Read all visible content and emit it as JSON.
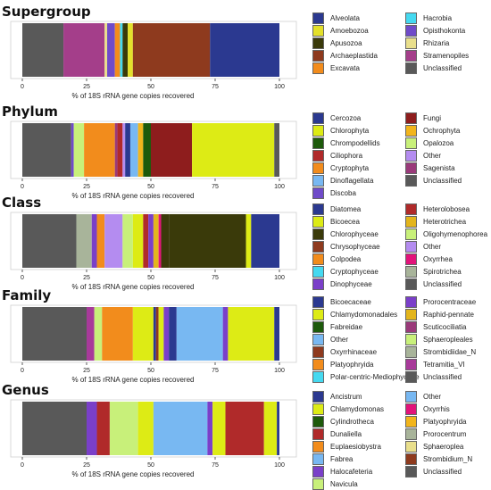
{
  "chart_data": [
    {
      "type": "bar",
      "title": "Supergroup",
      "xlabel": "% of 18S rRNA gene copies recovered",
      "xlim": [
        0,
        100
      ],
      "xticks": [
        0,
        25,
        50,
        75,
        100
      ],
      "layout": "stacked-horizontal",
      "legend": [
        {
          "label": "Alveolata",
          "color": "#2B3990"
        },
        {
          "label": "Amoebozoa",
          "color": "#E3E02A"
        },
        {
          "label": "Apusozoa",
          "color": "#3A3A0A"
        },
        {
          "label": "Archaeplastida",
          "color": "#8E3A1E"
        },
        {
          "label": "Excavata",
          "color": "#F28C1C"
        },
        {
          "label": "Hacrobia",
          "color": "#45D9F0"
        },
        {
          "label": "Opisthokonta",
          "color": "#6F4BC9"
        },
        {
          "label": "Rhizaria",
          "color": "#E9DF8C"
        },
        {
          "label": "Stramenopiles",
          "color": "#A43E8A"
        },
        {
          "label": "Unclassified",
          "color": "#595959"
        }
      ],
      "segments": [
        {
          "label": "Unclassified",
          "start": 0,
          "end": 16
        },
        {
          "label": "Stramenopiles",
          "start": 16,
          "end": 32
        },
        {
          "label": "Rhizaria",
          "start": 32,
          "end": 33
        },
        {
          "label": "Opisthokonta",
          "start": 33,
          "end": 36
        },
        {
          "label": "Excavata",
          "start": 36,
          "end": 38
        },
        {
          "label": "Hacrobia",
          "start": 38,
          "end": 39
        },
        {
          "label": "Apusozoa",
          "start": 39,
          "end": 41
        },
        {
          "label": "Amoebozoa",
          "start": 41,
          "end": 43
        },
        {
          "label": "Archaeplastida",
          "start": 43,
          "end": 73
        },
        {
          "label": "Alveolata",
          "start": 73,
          "end": 100
        }
      ]
    },
    {
      "type": "bar",
      "title": "Phylum",
      "xlabel": "% of 18S rRNA gene copies recovered",
      "xlim": [
        0,
        100
      ],
      "xticks": [
        0,
        25,
        50,
        75,
        100
      ],
      "layout": "stacked-horizontal",
      "legend": [
        {
          "label": "Cercozoa",
          "color": "#2B3990"
        },
        {
          "label": "Chlorophyta",
          "color": "#DDEB15"
        },
        {
          "label": "Chrompodellids",
          "color": "#1D5A0B"
        },
        {
          "label": "Ciliophora",
          "color": "#B02A2A"
        },
        {
          "label": "Cryptophyta",
          "color": "#F28C1C"
        },
        {
          "label": "Dinoflagellata",
          "color": "#78B8F2"
        },
        {
          "label": "Discoba",
          "color": "#6F4BC9"
        },
        {
          "label": "Fungi",
          "color": "#8E1D1D"
        },
        {
          "label": "Ochrophyta",
          "color": "#F2B51C"
        },
        {
          "label": "Opalozoa",
          "color": "#C8F07A"
        },
        {
          "label": "Other",
          "color": "#B48CF0"
        },
        {
          "label": "Sagenista",
          "color": "#9A3A7A"
        },
        {
          "label": "Unclassified",
          "color": "#595959"
        }
      ],
      "segments": [
        {
          "label": "Unclassified",
          "start": 0,
          "end": 19
        },
        {
          "label": "Discoba",
          "start": 19,
          "end": 20
        },
        {
          "label": "Opalozoa",
          "start": 20,
          "end": 24
        },
        {
          "label": "Cryptophyta",
          "start": 24,
          "end": 36
        },
        {
          "label": "Sagenista",
          "start": 36,
          "end": 37
        },
        {
          "label": "Ciliophora",
          "start": 37,
          "end": 39
        },
        {
          "label": "Other",
          "start": 39,
          "end": 40
        },
        {
          "label": "Cercozoa",
          "start": 40,
          "end": 42
        },
        {
          "label": "Dinoflagellata",
          "start": 42,
          "end": 45
        },
        {
          "label": "Ochrophyta",
          "start": 45,
          "end": 47
        },
        {
          "label": "Chrompodellids",
          "start": 47,
          "end": 50
        },
        {
          "label": "Fungi",
          "start": 50,
          "end": 66
        },
        {
          "label": "Chlorophyta",
          "start": 66,
          "end": 98
        },
        {
          "label": "Unclassified",
          "start": 98,
          "end": 100
        }
      ]
    },
    {
      "type": "bar",
      "title": "Class",
      "xlabel": "% of 18S rRNA gene copies recovered",
      "xlim": [
        0,
        100
      ],
      "xticks": [
        0,
        25,
        50,
        75,
        100
      ],
      "layout": "stacked-horizontal",
      "legend": [
        {
          "label": "Diatomea",
          "color": "#2B3990"
        },
        {
          "label": "Bicoecea",
          "color": "#DDEB15"
        },
        {
          "label": "Chlorophyceae",
          "color": "#3A3A0A"
        },
        {
          "label": "Chrysophyceae",
          "color": "#8E3A1E"
        },
        {
          "label": "Colpodea",
          "color": "#F28C1C"
        },
        {
          "label": "Cryptophyceae",
          "color": "#45D9F0"
        },
        {
          "label": "Dinophyceae",
          "color": "#7A3FC9"
        },
        {
          "label": "Heterolobosea",
          "color": "#B02A2A"
        },
        {
          "label": "Heterotrichea",
          "color": "#E3B51C"
        },
        {
          "label": "Oligohymenophorea",
          "color": "#C8F07A"
        },
        {
          "label": "Other",
          "color": "#B48CF0"
        },
        {
          "label": "Oxyrrhea",
          "color": "#E2137A"
        },
        {
          "label": "Spirotrichea",
          "color": "#A8B49A"
        },
        {
          "label": "Unclassified",
          "color": "#595959"
        }
      ],
      "segments": [
        {
          "label": "Unclassified",
          "start": 0,
          "end": 21
        },
        {
          "label": "Spirotrichea",
          "start": 21,
          "end": 27
        },
        {
          "label": "Dinophyceae",
          "start": 27,
          "end": 29
        },
        {
          "label": "Colpodea",
          "start": 29,
          "end": 32
        },
        {
          "label": "Other",
          "start": 32,
          "end": 39
        },
        {
          "label": "Oligohymenophorea",
          "start": 39,
          "end": 43
        },
        {
          "label": "Bicoecea",
          "start": 43,
          "end": 47
        },
        {
          "label": "Heterolobosea",
          "start": 47,
          "end": 49
        },
        {
          "label": "Dinophyceae",
          "start": 49,
          "end": 51
        },
        {
          "label": "Heterotrichea",
          "start": 51,
          "end": 53
        },
        {
          "label": "Oxyrrhea",
          "start": 53,
          "end": 54
        },
        {
          "label": "Chlorophyceae",
          "start": 54,
          "end": 57
        },
        {
          "label": "Chlorophyceae",
          "start": 57,
          "end": 87
        },
        {
          "label": "Bicoecea",
          "start": 87,
          "end": 89
        },
        {
          "label": "Diatomea",
          "start": 89,
          "end": 100
        }
      ]
    },
    {
      "type": "bar",
      "title": "Family",
      "xlabel": "% of 18S rRNA gene copies recovered",
      "xlim": [
        0,
        100
      ],
      "xticks": [
        0,
        25,
        50,
        75,
        100
      ],
      "layout": "stacked-horizontal",
      "legend": [
        {
          "label": "Bicoecaceae",
          "color": "#2B3990"
        },
        {
          "label": "Chlamydomonadales",
          "color": "#DDEB15"
        },
        {
          "label": "Fabreidae",
          "color": "#1D5A0B"
        },
        {
          "label": "Other",
          "color": "#78B8F2"
        },
        {
          "label": "Oxyrrhinaceae",
          "color": "#8E3A1E"
        },
        {
          "label": "Platyophryida",
          "color": "#F28C1C"
        },
        {
          "label": "Polar-centric-Mediophyceae",
          "color": "#45D9F0"
        },
        {
          "label": "Prorocentraceae",
          "color": "#7A3FC9"
        },
        {
          "label": "Raphid-pennate",
          "color": "#E3B51C"
        },
        {
          "label": "Scuticociliatia",
          "color": "#9A3A7A"
        },
        {
          "label": "Sphaeropleales",
          "color": "#C8F07A"
        },
        {
          "label": "Strombidiidae_N",
          "color": "#A8B49A"
        },
        {
          "label": "Tetramitia_VI",
          "color": "#A83A9A"
        },
        {
          "label": "Unclassified",
          "color": "#595959"
        }
      ],
      "segments": [
        {
          "label": "Unclassified",
          "start": 0,
          "end": 25
        },
        {
          "label": "Tetramitia_VI",
          "start": 25,
          "end": 28
        },
        {
          "label": "Sphaeropleales",
          "start": 28,
          "end": 31
        },
        {
          "label": "Platyophryida",
          "start": 31,
          "end": 43
        },
        {
          "label": "Chlamydomonadales",
          "start": 43,
          "end": 51
        },
        {
          "label": "Bicoecaceae",
          "start": 51,
          "end": 52
        },
        {
          "label": "Oxyrrhinaceae",
          "start": 52,
          "end": 53
        },
        {
          "label": "Chlamydomonadales",
          "start": 53,
          "end": 55
        },
        {
          "label": "Prorocentraceae",
          "start": 55,
          "end": 57
        },
        {
          "label": "Bicoecaceae",
          "start": 57,
          "end": 60
        },
        {
          "label": "Other",
          "start": 60,
          "end": 78
        },
        {
          "label": "Prorocentraceae",
          "start": 78,
          "end": 80
        },
        {
          "label": "Chlamydomonadales",
          "start": 80,
          "end": 98
        },
        {
          "label": "Bicoecaceae",
          "start": 98,
          "end": 100
        }
      ]
    },
    {
      "type": "bar",
      "title": "Genus",
      "xlabel": "% of 18S rRNA gene copies recovered",
      "xlim": [
        0,
        100
      ],
      "xticks": [
        0,
        25,
        50,
        75,
        100
      ],
      "layout": "stacked-horizontal",
      "legend": [
        {
          "label": "Ancistrum",
          "color": "#2B3990"
        },
        {
          "label": "Chlamydomonas",
          "color": "#DDEB15"
        },
        {
          "label": "Cylindrotheca",
          "color": "#1D5A0B"
        },
        {
          "label": "Dunaliella",
          "color": "#B02A2A"
        },
        {
          "label": "Euplaesiobystra",
          "color": "#F28C1C"
        },
        {
          "label": "Fabrea",
          "color": "#78B8F2"
        },
        {
          "label": "Halocafeteria",
          "color": "#7A3FC9"
        },
        {
          "label": "Navicula",
          "color": "#C8F07A"
        },
        {
          "label": "Other",
          "color": "#78B8F2"
        },
        {
          "label": "Oxyrrhis",
          "color": "#E2137A"
        },
        {
          "label": "Platyophryida",
          "color": "#F2B51C"
        },
        {
          "label": "Prorocentrum",
          "color": "#A8B49A"
        },
        {
          "label": "Sphaeroplea",
          "color": "#E9DF8C"
        },
        {
          "label": "Strombidium_N",
          "color": "#8E3A1E"
        },
        {
          "label": "Unclassified",
          "color": "#595959"
        }
      ],
      "segments": [
        {
          "label": "Unclassified",
          "start": 0,
          "end": 25
        },
        {
          "label": "Halocafeteria",
          "start": 25,
          "end": 29
        },
        {
          "label": "Dunaliella",
          "start": 29,
          "end": 34
        },
        {
          "label": "Navicula",
          "start": 34,
          "end": 45
        },
        {
          "label": "Chlamydomonas",
          "start": 45,
          "end": 51
        },
        {
          "label": "Fabrea",
          "start": 51,
          "end": 72
        },
        {
          "label": "Halocafeteria",
          "start": 72,
          "end": 74
        },
        {
          "label": "Chlamydomonas",
          "start": 74,
          "end": 79
        },
        {
          "label": "Dunaliella",
          "start": 79,
          "end": 94
        },
        {
          "label": "Chlamydomonas",
          "start": 94,
          "end": 99
        },
        {
          "label": "Ancistrum",
          "start": 99,
          "end": 100
        }
      ]
    }
  ]
}
